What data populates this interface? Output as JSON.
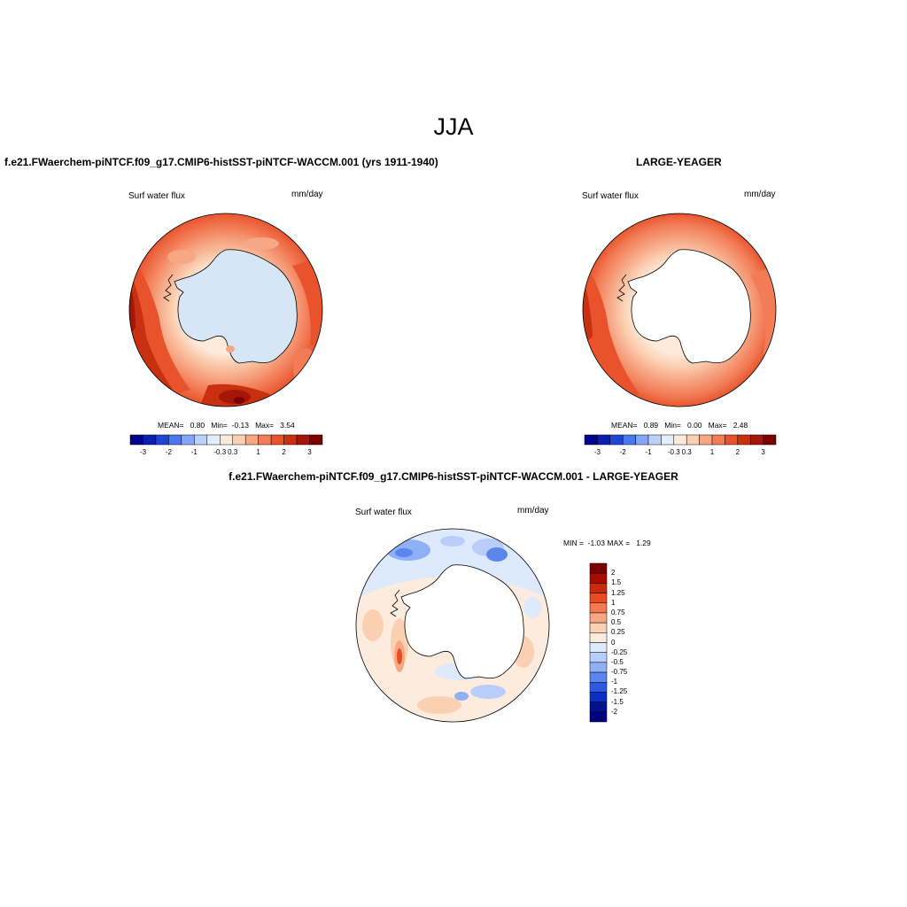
{
  "figure": {
    "season": "JJA"
  },
  "panel_left": {
    "title": "f.e21.FWaerchem-piNTCF.f09_g17.CMIP6-histSST-piNTCF-WACCM.001 (yrs 1911-1940)",
    "variable": "Surf water flux",
    "units": "mm/day",
    "stats": "MEAN=   0.80   Min=  -0.13   Max=   3.54",
    "colorbar_ticks": [
      "-3",
      "-2",
      "-1",
      "-0.3",
      "0.3",
      "1",
      "2",
      "3"
    ]
  },
  "panel_right": {
    "title": "LARGE-YEAGER",
    "variable": "Surf water flux",
    "units": "mm/day",
    "stats": "MEAN=   0.89   Min=   0.00   Max=   2.48",
    "colorbar_ticks": [
      "-3",
      "-2",
      "-1",
      "-0.3",
      "0.3",
      "1",
      "2",
      "3"
    ]
  },
  "panel_diff": {
    "title": "f.e21.FWaerchem-piNTCF.f09_g17.CMIP6-histSST-piNTCF-WACCM.001 - LARGE-YEAGER",
    "variable": "Surf water flux",
    "units": "mm/day",
    "stats": "MIN =  -1.03 MAX =   1.29",
    "colorbar_ticks": [
      "2",
      "1.5",
      "1.25",
      "1",
      "0.75",
      "0.5",
      "0.25",
      "0",
      "-0.25",
      "-0.5",
      "-0.75",
      "-1",
      "-1.25",
      "-1.5",
      "-2"
    ]
  },
  "palettes": {
    "main": [
      "#00008b",
      "#0a1fb0",
      "#1f45d6",
      "#4a78ee",
      "#86a6f5",
      "#bcd0fb",
      "#e2edfd",
      "#fdeadb",
      "#fbcfb2",
      "#f6a785",
      "#f27c56",
      "#e8532b",
      "#c8300f",
      "#a41608",
      "#7c0000"
    ],
    "diff": [
      "#7c0000",
      "#a50c04",
      "#c82a0c",
      "#e84d1f",
      "#f27950",
      "#f7a783",
      "#fbcfb2",
      "#fdebdd",
      "#dde9fd",
      "#b8cdfa",
      "#8fb0f5",
      "#5a86ee",
      "#2f58e0",
      "#0c2ec2",
      "#00128e",
      "#000080"
    ],
    "land_fill_left": "#d6e6f7",
    "land_fill_other": "#ffffff"
  }
}
